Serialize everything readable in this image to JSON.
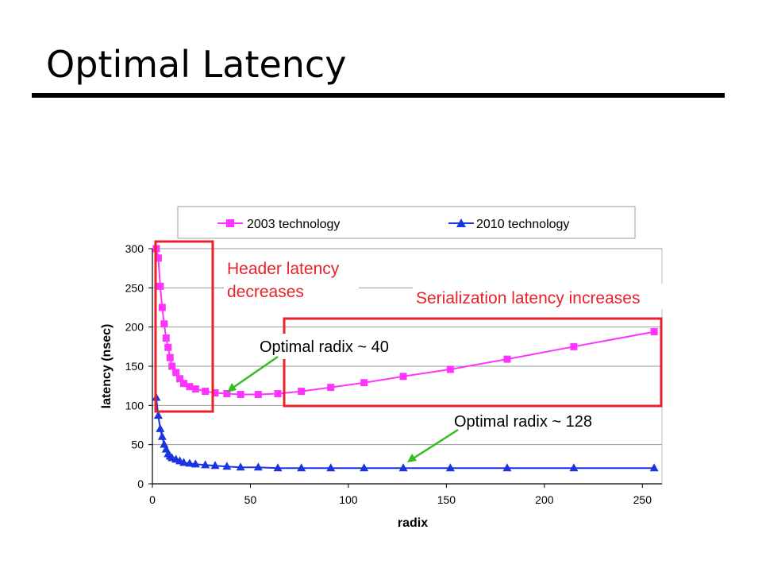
{
  "slide": {
    "title": "Optimal Latency"
  },
  "chart_data": {
    "type": "line",
    "xlabel": "radix",
    "ylabel": "latency (nsec)",
    "xlim": [
      0,
      260
    ],
    "ylim": [
      0,
      300
    ],
    "x_ticks": [
      0,
      50,
      100,
      150,
      200,
      250
    ],
    "y_ticks": [
      0,
      50,
      100,
      150,
      200,
      250,
      300
    ],
    "grid": "horizontal",
    "legend_position": "top",
    "series": [
      {
        "name": "2003 technology",
        "color": "#ff33ff",
        "marker": "square",
        "x": [
          2,
          3,
          4,
          5,
          6,
          7,
          8,
          9,
          10,
          12,
          14,
          16,
          19,
          22,
          27,
          32,
          38,
          45,
          54,
          64,
          76,
          91,
          108,
          128,
          152,
          181,
          215,
          256
        ],
        "y": [
          300,
          288,
          252,
          225,
          204,
          186,
          174,
          161,
          150,
          142,
          134,
          128,
          124,
          121,
          118,
          116,
          115,
          114,
          114,
          115,
          118,
          123,
          129,
          137,
          146,
          159,
          175,
          194
        ]
      },
      {
        "name": "2010 technology",
        "color": "#1a35e0",
        "marker": "triangle",
        "x": [
          2,
          3,
          4,
          5,
          6,
          7,
          8,
          9,
          10,
          12,
          14,
          16,
          19,
          22,
          27,
          32,
          38,
          45,
          54,
          64,
          76,
          91,
          108,
          128,
          152,
          181,
          215,
          256
        ],
        "y": [
          110,
          87,
          70,
          60,
          50,
          44,
          38,
          35,
          33,
          31,
          29,
          27,
          26,
          25,
          24,
          23,
          22,
          21,
          21,
          20,
          20,
          20,
          20,
          20,
          20,
          20,
          20,
          20
        ]
      }
    ],
    "annotations": {
      "header": [
        "Header latency",
        "decreases"
      ],
      "serialization": "Serialization latency increases",
      "optimal_2003": "Optimal radix ~ 40",
      "optimal_2010": "Optimal radix ~ 128"
    },
    "annotation_colors": {
      "box": "#e8222a",
      "arrow": "#33bb22"
    }
  }
}
